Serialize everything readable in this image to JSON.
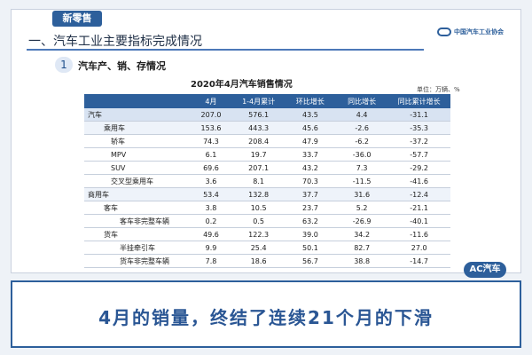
{
  "header": {
    "tag": "新零售",
    "section_title": "一、汽车工业主要指标完成情况",
    "brand_name": "中国汽车工业协会"
  },
  "subsection": {
    "number": "1",
    "title": "汽车产、销、存情况"
  },
  "table": {
    "title": "2020年4月汽车销售情况",
    "unit": "单位：万辆、%",
    "columns": [
      "",
      "4月",
      "1-4月累计",
      "环比增长",
      "同比增长",
      "同比累计增长"
    ],
    "rows": [
      {
        "name": "汽车",
        "values": [
          "207.0",
          "576.1",
          "43.5",
          "4.4",
          "-31.1"
        ]
      },
      {
        "name": "乘用车",
        "values": [
          "153.6",
          "443.3",
          "45.6",
          "-2.6",
          "-35.3"
        ]
      },
      {
        "name": "轿车",
        "values": [
          "74.3",
          "208.4",
          "47.9",
          "-6.2",
          "-37.2"
        ]
      },
      {
        "name": "MPV",
        "values": [
          "6.1",
          "19.7",
          "33.7",
          "-36.0",
          "-57.7"
        ]
      },
      {
        "name": "SUV",
        "values": [
          "69.6",
          "207.1",
          "43.2",
          "7.3",
          "-29.2"
        ]
      },
      {
        "name": "交叉型乘用车",
        "values": [
          "3.6",
          "8.1",
          "70.3",
          "-11.5",
          "-41.6"
        ]
      },
      {
        "name": "商用车",
        "values": [
          "53.4",
          "132.8",
          "37.7",
          "31.6",
          "-12.4"
        ]
      },
      {
        "name": "客车",
        "values": [
          "3.8",
          "10.5",
          "23.7",
          "5.2",
          "-21.1"
        ]
      },
      {
        "name": "客车非完整车辆",
        "values": [
          "0.2",
          "0.5",
          "63.2",
          "-26.9",
          "-40.1"
        ]
      },
      {
        "name": "货车",
        "values": [
          "49.6",
          "122.3",
          "39.0",
          "34.2",
          "-11.6"
        ]
      },
      {
        "name": "半挂牵引车",
        "values": [
          "9.9",
          "25.4",
          "50.1",
          "82.7",
          "27.0"
        ]
      },
      {
        "name": "货车非完整车辆",
        "values": [
          "7.8",
          "18.6",
          "56.7",
          "38.8",
          "-14.7"
        ]
      }
    ]
  },
  "footer_logo": "AC汽车",
  "banner": {
    "text": "4月的销量，终结了连续21个月的下滑"
  },
  "colors": {
    "primary": "#2d5f9b",
    "shade": "#d8e3f2",
    "light": "#eef3fa"
  }
}
